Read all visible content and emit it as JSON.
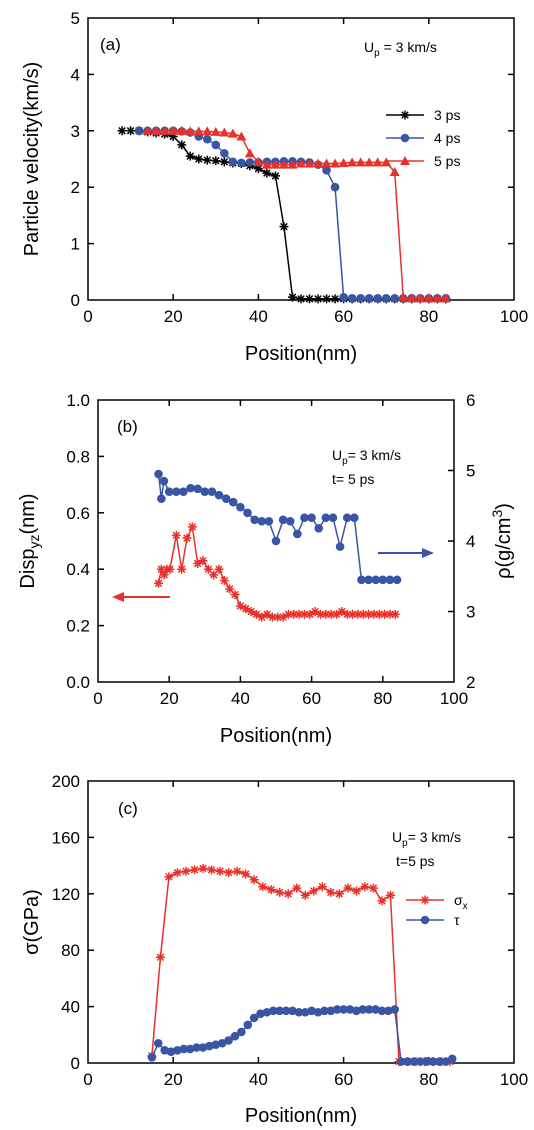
{
  "chart_data": [
    {
      "type": "line",
      "panel_label": "(a)",
      "xlabel": "Position(nm)",
      "ylabel": "Particle velocity(km/s)",
      "xlim": [
        0,
        100
      ],
      "ylim": [
        0,
        5
      ],
      "xticks": [
        "0",
        "20",
        "40",
        "60",
        "80",
        "100"
      ],
      "yticks": [
        "0",
        "1",
        "2",
        "3",
        "4",
        "5"
      ],
      "annotation": {
        "main": "U",
        "sub": "p",
        "rest": " = 3 km/s"
      },
      "legend_position": "top-right",
      "series": [
        {
          "name": "3 ps",
          "color": "#000000",
          "marker": "asterisk",
          "x": [
            8,
            10,
            12,
            14,
            16,
            18,
            20,
            22,
            24,
            26,
            28,
            30,
            32,
            34,
            36,
            38,
            40,
            42,
            44,
            46,
            48,
            50,
            52,
            54,
            56,
            58,
            60,
            62,
            64,
            66,
            68,
            70,
            72,
            74,
            76,
            78,
            80,
            82,
            84
          ],
          "y": [
            3.0,
            3.0,
            3.0,
            2.98,
            2.96,
            2.94,
            2.9,
            2.75,
            2.55,
            2.5,
            2.48,
            2.47,
            2.45,
            2.43,
            2.42,
            2.38,
            2.33,
            2.25,
            2.2,
            1.3,
            0.05,
            0.02,
            0.02,
            0.02,
            0.02,
            0.02,
            0.02,
            0.02,
            0.02,
            0.02,
            0.02,
            0.02,
            0.02,
            0.02,
            0.02,
            0.02,
            0.02,
            0.02,
            0.02
          ]
        },
        {
          "name": "4 ps",
          "color": "#3a55a4",
          "marker": "circle",
          "x": [
            12,
            14,
            16,
            18,
            20,
            22,
            24,
            26,
            28,
            30,
            32,
            34,
            36,
            38,
            40,
            42,
            44,
            46,
            48,
            50,
            52,
            54,
            56,
            58,
            60,
            62,
            64,
            66,
            68,
            70,
            72,
            74,
            76,
            78,
            80,
            82,
            84
          ],
          "y": [
            3.0,
            3.0,
            3.0,
            3.0,
            3.0,
            2.99,
            2.97,
            2.9,
            2.85,
            2.75,
            2.6,
            2.45,
            2.43,
            2.44,
            2.44,
            2.45,
            2.45,
            2.46,
            2.46,
            2.45,
            2.44,
            2.4,
            2.3,
            2.0,
            0.05,
            0.03,
            0.03,
            0.03,
            0.03,
            0.03,
            0.03,
            0.03,
            0.03,
            0.03,
            0.03,
            0.03,
            0.03
          ]
        },
        {
          "name": "5 ps",
          "color": "#e8312a",
          "marker": "triangle",
          "x": [
            14,
            16,
            18,
            20,
            22,
            24,
            26,
            28,
            30,
            32,
            34,
            36,
            38,
            40,
            42,
            44,
            46,
            48,
            50,
            52,
            54,
            56,
            58,
            60,
            62,
            64,
            66,
            68,
            70,
            72,
            74,
            76,
            78,
            80,
            82,
            84
          ],
          "y": [
            3.0,
            3.0,
            3.0,
            3.0,
            3.0,
            2.99,
            2.99,
            2.99,
            2.98,
            2.97,
            2.95,
            2.9,
            2.6,
            2.45,
            2.4,
            2.4,
            2.4,
            2.4,
            2.42,
            2.42,
            2.42,
            2.42,
            2.42,
            2.43,
            2.44,
            2.44,
            2.44,
            2.44,
            2.44,
            2.27,
            0.05,
            0.03,
            0.03,
            0.03,
            0.03,
            0.03
          ]
        }
      ]
    },
    {
      "type": "line",
      "panel_label": "(b)",
      "xlabel": "Position(nm)",
      "ylabel": {
        "main": "Disp",
        "sub": "yz",
        "rest": "(nm)"
      },
      "y2label": {
        "main": "ρ(g/cm",
        "sup": "3",
        "rest": ")"
      },
      "xlim": [
        0,
        100
      ],
      "ylim": [
        0,
        1.0
      ],
      "y2lim": [
        2,
        6
      ],
      "xticks": [
        "0",
        "20",
        "40",
        "60",
        "80",
        "100"
      ],
      "yticks": [
        "0.0",
        "0.2",
        "0.4",
        "0.6",
        "0.8",
        "1.0"
      ],
      "y2ticks": [
        "2",
        "3",
        "4",
        "5",
        "6"
      ],
      "annotation": [
        {
          "main": "U",
          "sub": "p",
          "rest": "= 3 km/s"
        },
        {
          "main": "t= 5 ps",
          "sub": "",
          "rest": ""
        }
      ],
      "series": [
        {
          "color": "#3a55a4",
          "marker": "circle",
          "axis": "right",
          "x": [
            17,
            17.8,
            18.5,
            20,
            22,
            24,
            26,
            28,
            30,
            32,
            34,
            36,
            38,
            40,
            42,
            44,
            46,
            48,
            50,
            52,
            54,
            56,
            58,
            60,
            62,
            64,
            66,
            68,
            70,
            72,
            74,
            76,
            78,
            80,
            82,
            84
          ],
          "y": [
            4.95,
            4.6,
            4.85,
            4.7,
            4.7,
            4.7,
            4.75,
            4.74,
            4.7,
            4.7,
            4.65,
            4.6,
            4.55,
            4.48,
            4.4,
            4.3,
            4.28,
            4.28,
            4.0,
            4.3,
            4.28,
            4.1,
            4.33,
            4.33,
            4.18,
            4.33,
            4.33,
            3.92,
            4.33,
            4.33,
            3.45,
            3.45,
            3.45,
            3.45,
            3.45,
            3.45
          ]
        },
        {
          "color": "#e8312a",
          "marker": "asterisk",
          "axis": "left",
          "x": [
            17,
            17.8,
            18.6,
            19.4,
            20.2,
            22,
            23.5,
            25,
            26.5,
            28,
            29.5,
            31,
            32.5,
            34,
            35.5,
            37,
            38.5,
            40,
            41.5,
            43,
            44.5,
            46,
            47.5,
            49,
            50.5,
            52,
            53.5,
            55,
            56.5,
            58,
            59.5,
            61,
            62.5,
            64,
            65.5,
            67,
            68.5,
            70,
            71.5,
            73,
            74.5,
            76,
            77.5,
            79,
            80.5,
            82,
            83.5
          ],
          "y": [
            0.35,
            0.4,
            0.38,
            0.4,
            0.4,
            0.52,
            0.4,
            0.51,
            0.55,
            0.42,
            0.43,
            0.4,
            0.38,
            0.4,
            0.36,
            0.33,
            0.31,
            0.27,
            0.26,
            0.25,
            0.24,
            0.23,
            0.24,
            0.23,
            0.23,
            0.23,
            0.24,
            0.24,
            0.24,
            0.24,
            0.24,
            0.25,
            0.24,
            0.24,
            0.24,
            0.24,
            0.25,
            0.24,
            0.24,
            0.24,
            0.24,
            0.24,
            0.24,
            0.24,
            0.24,
            0.24,
            0.24
          ]
        }
      ]
    },
    {
      "type": "line",
      "panel_label": "(c)",
      "xlabel": "Position(nm)",
      "ylabel": "σ(GPa)",
      "xlim": [
        0,
        100
      ],
      "ylim": [
        0,
        200
      ],
      "xticks": [
        "0",
        "20",
        "40",
        "60",
        "80",
        "100"
      ],
      "yticks": [
        "0",
        "40",
        "80",
        "120",
        "160",
        "200"
      ],
      "annotation": [
        {
          "main": "U",
          "sub": "p",
          "rest": "= 3 km/s"
        },
        {
          "main": "t=5 ps",
          "sub": "",
          "rest": ""
        }
      ],
      "legend_position": "right",
      "series": [
        {
          "name": "σ",
          "name_sub": "x",
          "color": "#e8312a",
          "marker": "asterisk",
          "x": [
            15,
            17,
            19,
            21,
            23,
            25,
            27,
            29,
            31,
            33,
            35,
            37,
            39,
            41,
            43,
            45,
            47,
            49,
            51,
            53,
            55,
            57,
            59,
            61,
            63,
            65,
            67,
            69,
            71,
            73,
            75,
            77,
            79,
            81,
            83,
            85
          ],
          "y": [
            5,
            75,
            132,
            135,
            136,
            137,
            138,
            137,
            136,
            135,
            136,
            134,
            130,
            125,
            123,
            121,
            120,
            124,
            119,
            122,
            125,
            121,
            120,
            124,
            122,
            125,
            124,
            115,
            119,
            1,
            1,
            1,
            1,
            1,
            1,
            1
          ]
        },
        {
          "name": "τ",
          "name_sub": "",
          "color": "#3a55a4",
          "marker": "circle",
          "x": [
            15,
            16.5,
            18,
            19.5,
            21,
            22.5,
            24,
            25.5,
            27,
            28.5,
            30,
            31.5,
            33,
            34.5,
            36,
            37.5,
            39,
            40.5,
            42,
            43.5,
            45,
            46.5,
            48,
            49.5,
            51,
            52.5,
            54,
            55.5,
            57,
            58.5,
            60,
            61.5,
            63,
            64.5,
            66,
            67.5,
            69,
            70.5,
            72,
            73.5,
            75,
            76.5,
            78,
            79.5,
            81,
            82.5,
            84,
            85.5
          ],
          "y": [
            4,
            14,
            9,
            8,
            9,
            10,
            10,
            11,
            11,
            12,
            13,
            14,
            16,
            19,
            22,
            27,
            32,
            35,
            36,
            37,
            37,
            37,
            37,
            36,
            36,
            37,
            36,
            37,
            37,
            38,
            38,
            38,
            37,
            38,
            38,
            38,
            37,
            37,
            38,
            1,
            1,
            1,
            1,
            1,
            1,
            1,
            1,
            3
          ]
        }
      ]
    }
  ]
}
